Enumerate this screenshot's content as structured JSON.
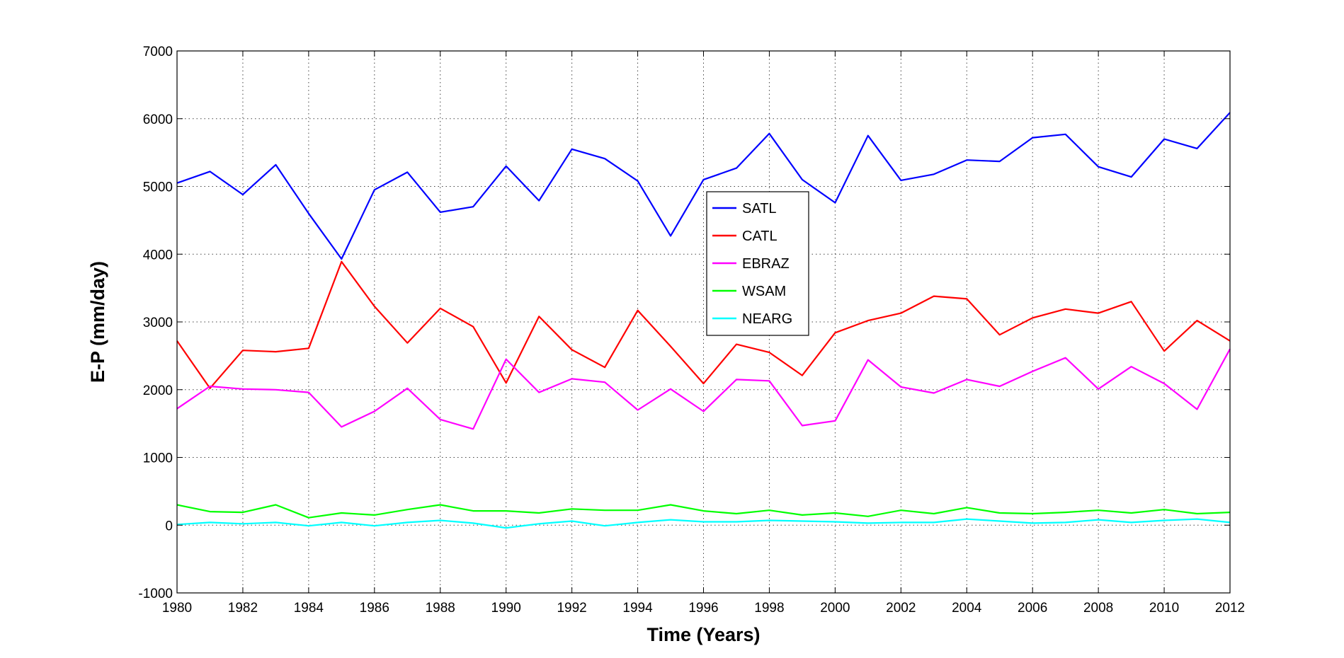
{
  "chart_data": {
    "type": "line",
    "title": "",
    "xlabel": "Time (Years)",
    "ylabel": "E-P (mm/day)",
    "xlim": [
      1980,
      2012
    ],
    "ylim": [
      -1000,
      7000
    ],
    "xticks": [
      1980,
      1982,
      1984,
      1986,
      1988,
      1990,
      1992,
      1994,
      1996,
      1998,
      2000,
      2002,
      2004,
      2006,
      2008,
      2010,
      2012
    ],
    "yticks": [
      -1000,
      0,
      1000,
      2000,
      3000,
      4000,
      5000,
      6000,
      7000
    ],
    "grid": true,
    "legend_position": "center",
    "x": [
      1980,
      1981,
      1982,
      1983,
      1984,
      1985,
      1986,
      1987,
      1988,
      1989,
      1990,
      1991,
      1992,
      1993,
      1994,
      1995,
      1996,
      1997,
      1998,
      1999,
      2000,
      2001,
      2002,
      2003,
      2004,
      2005,
      2006,
      2007,
      2008,
      2009,
      2010,
      2011,
      2012
    ],
    "series": [
      {
        "name": "SATL",
        "color": "#0000ff",
        "values": [
          5050,
          5220,
          4880,
          5320,
          4600,
          3930,
          4950,
          5210,
          4620,
          4700,
          5300,
          4790,
          5550,
          5410,
          5080,
          4270,
          5100,
          5270,
          5780,
          5100,
          4760,
          5750,
          5090,
          5180,
          5390,
          5370,
          5720,
          5770,
          5290,
          5140,
          5700,
          5560,
          6090
        ]
      },
      {
        "name": "CATL",
        "color": "#ff0000",
        "values": [
          2720,
          2020,
          2580,
          2560,
          2610,
          3890,
          3230,
          2690,
          3200,
          2930,
          2100,
          3080,
          2590,
          2330,
          3170,
          2640,
          2090,
          2670,
          2550,
          2210,
          2840,
          3020,
          3130,
          3380,
          3340,
          2810,
          3060,
          3190,
          3130,
          3300,
          2570,
          3020,
          2720
        ]
      },
      {
        "name": "EBRAZ",
        "color": "#ff00ff",
        "values": [
          1720,
          2050,
          2010,
          2000,
          1960,
          1450,
          1680,
          2020,
          1560,
          1420,
          2450,
          1960,
          2160,
          2110,
          1700,
          2010,
          1680,
          2150,
          2130,
          1470,
          1540,
          2440,
          2040,
          1950,
          2150,
          2050,
          2270,
          2470,
          2010,
          2340,
          2090,
          1710,
          2600
        ]
      },
      {
        "name": "WSAM",
        "color": "#00ff00",
        "values": [
          300,
          200,
          190,
          300,
          110,
          180,
          150,
          230,
          300,
          210,
          210,
          180,
          240,
          220,
          220,
          300,
          210,
          170,
          220,
          150,
          180,
          130,
          220,
          170,
          260,
          180,
          170,
          190,
          220,
          180,
          230,
          170,
          190
        ]
      },
      {
        "name": "NEARG",
        "color": "#00ffff",
        "values": [
          10,
          40,
          20,
          40,
          -10,
          40,
          -10,
          40,
          70,
          30,
          -40,
          20,
          60,
          -10,
          40,
          80,
          50,
          50,
          70,
          60,
          50,
          30,
          40,
          40,
          90,
          60,
          30,
          40,
          80,
          40,
          70,
          90,
          40
        ]
      }
    ]
  }
}
